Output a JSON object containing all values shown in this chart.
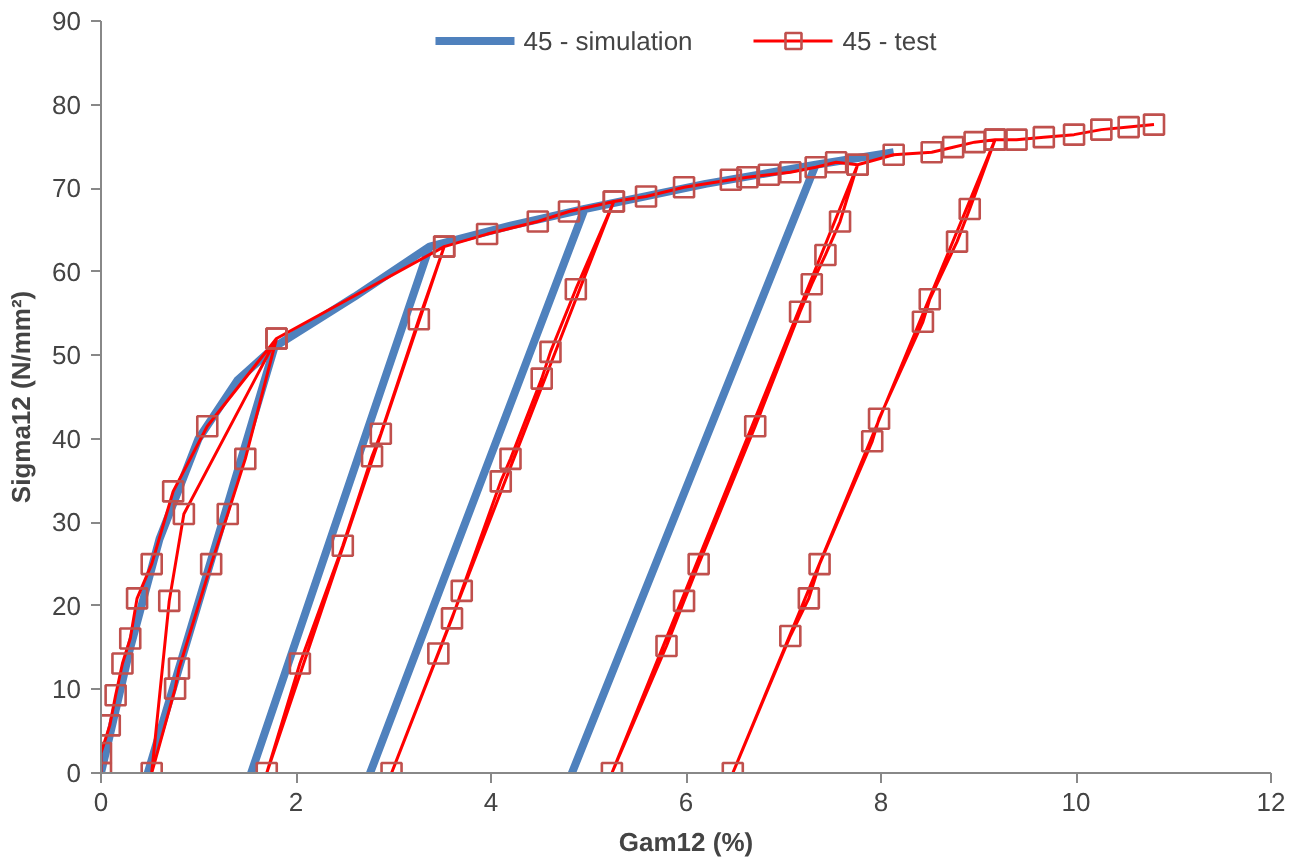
{
  "chart_data": {
    "type": "line",
    "xlabel": "Gam12 (%)",
    "ylabel": "Sigma12 (N/mm²)",
    "xlim": [
      0,
      12
    ],
    "ylim": [
      0,
      90
    ],
    "xticks": [
      0,
      2,
      4,
      6,
      8,
      10,
      12
    ],
    "yticks": [
      0,
      10,
      20,
      30,
      40,
      50,
      60,
      70,
      80,
      90
    ],
    "grid": false,
    "legend": "top",
    "series": [
      {
        "name": "45 - simulation",
        "color": "#4f81bd",
        "marker": "none",
        "x": [
          0,
          0.3,
          0.6,
          1.0,
          1.4,
          1.78,
          0.48,
          1.78,
          2.6,
          3.37,
          1.54,
          3.37,
          4.2,
          4.96,
          2.76,
          4.96,
          6.2,
          7.33,
          4.83,
          7.33,
          8.13
        ],
        "values": [
          0,
          15,
          28,
          40,
          47,
          51,
          0,
          51,
          57,
          63,
          0,
          63,
          65.5,
          67.5,
          0,
          67.5,
          70.5,
          72.8,
          0,
          72.8,
          74.3
        ]
      },
      {
        "name": "45 - test",
        "color": "#ff0000",
        "marker": "square",
        "x": [
          0,
          0,
          0.09,
          0.15,
          0.22,
          0.3,
          0.37,
          0.52,
          0.74,
          1.09,
          1.8,
          1.48,
          1.3,
          1.13,
          0.8,
          0.76,
          0.52,
          0.7,
          0.85,
          1.8,
          3.52,
          3.26,
          2.87,
          2.78,
          2.48,
          2.04,
          1.7,
          3.52,
          3.96,
          4.48,
          4.8,
          5.26,
          4.87,
          4.61,
          4.52,
          4.2,
          4.1,
          3.7,
          3.6,
          3.46,
          2.98,
          5.26,
          5.59,
          5.98,
          6.46,
          6.63,
          6.85,
          7.07,
          7.33,
          7.54,
          7.76,
          7.58,
          7.43,
          7.29,
          7.17,
          6.71,
          6.13,
          5.98,
          5.8,
          5.24,
          7.76,
          8.13,
          8.52,
          8.74,
          8.96,
          9.17,
          8.91,
          8.78,
          8.5,
          8.43,
          7.98,
          7.91,
          7.37,
          7.26,
          7.07,
          6.48,
          9.17,
          9.39,
          9.67,
          9.98,
          10.26,
          10.54,
          10.8
        ],
        "values": [
          0,
          2.4,
          5.7,
          9.3,
          13.1,
          16.1,
          20.9,
          25,
          33.7,
          41.5,
          52,
          37.6,
          31,
          25,
          12.5,
          10.1,
          0,
          20.6,
          31,
          52,
          63,
          54.3,
          40.6,
          37.9,
          27.2,
          13.1,
          0,
          63,
          64.5,
          66,
          67.2,
          68.4,
          57.9,
          50.4,
          47.2,
          37.6,
          34.9,
          21.8,
          18.5,
          14.3,
          0,
          68.4,
          69,
          70.1,
          71,
          71.3,
          71.6,
          71.9,
          72.5,
          73.1,
          72.8,
          66,
          62,
          58.5,
          55.2,
          41.5,
          25,
          20.6,
          15.2,
          0,
          72.8,
          74,
          74.3,
          74.9,
          75.5,
          75.8,
          67.5,
          63.6,
          56.7,
          54,
          42.4,
          39.7,
          25,
          20.9,
          16.4,
          0,
          75.8,
          75.8,
          76.1,
          76.4,
          77,
          77.3,
          77.6
        ]
      }
    ]
  }
}
